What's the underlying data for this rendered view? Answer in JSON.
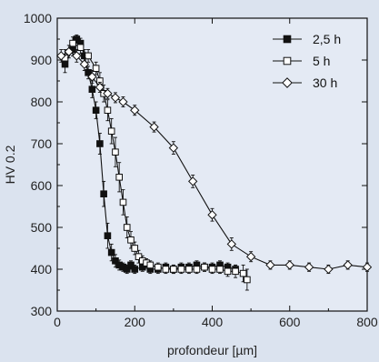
{
  "colors": {
    "background": "#dbe3ef",
    "plot_background": "#e4eaf4",
    "ink": "#111111"
  },
  "chart_data": {
    "type": "line",
    "xlabel": "profondeur [µm]",
    "ylabel": "HV 0.2",
    "xlim": [
      0,
      800
    ],
    "ylim": [
      300,
      1000
    ],
    "xticks": [
      0,
      200,
      400,
      600,
      800
    ],
    "yticks": [
      300,
      400,
      500,
      600,
      700,
      800,
      900,
      1000
    ],
    "grid": false,
    "legend_position": "top-right",
    "series": [
      {
        "name": "2,5 h",
        "marker": "filled-square",
        "x": [
          20,
          40,
          50,
          60,
          70,
          80,
          90,
          100,
          110,
          120,
          130,
          140,
          150,
          160,
          170,
          180,
          190,
          200,
          220,
          240,
          260,
          280,
          300,
          320,
          340,
          360,
          380,
          400,
          420,
          440,
          460
        ],
        "y": [
          890,
          925,
          950,
          940,
          910,
          870,
          830,
          780,
          700,
          580,
          480,
          440,
          420,
          410,
          405,
          400,
          410,
          400,
          405,
          400,
          400,
          405,
          400,
          405,
          405,
          410,
          405,
          405,
          410,
          405,
          400
        ],
        "yerr": [
          20,
          15,
          10,
          12,
          15,
          15,
          20,
          20,
          25,
          30,
          30,
          20,
          15,
          12,
          10,
          10,
          10,
          10,
          10,
          10,
          10,
          10,
          10,
          10,
          10,
          10,
          10,
          10,
          10,
          10,
          10
        ]
      },
      {
        "name": "5 h",
        "marker": "open-square",
        "x": [
          20,
          40,
          60,
          80,
          100,
          110,
          120,
          130,
          140,
          150,
          160,
          170,
          180,
          190,
          200,
          210,
          220,
          230,
          240,
          260,
          280,
          300,
          320,
          340,
          360,
          380,
          400,
          420,
          440,
          460,
          480,
          490
        ],
        "y": [
          905,
          940,
          930,
          910,
          880,
          850,
          820,
          780,
          730,
          680,
          620,
          560,
          500,
          470,
          450,
          430,
          420,
          415,
          410,
          405,
          400,
          400,
          400,
          400,
          400,
          405,
          400,
          400,
          395,
          395,
          390,
          375
        ],
        "yerr": [
          20,
          15,
          15,
          15,
          15,
          20,
          20,
          25,
          30,
          35,
          35,
          30,
          25,
          20,
          15,
          15,
          12,
          10,
          10,
          10,
          10,
          10,
          10,
          10,
          10,
          10,
          10,
          10,
          12,
          15,
          20,
          25
        ]
      },
      {
        "name": "30 h",
        "marker": "open-diamond",
        "x": [
          10,
          30,
          50,
          70,
          90,
          110,
          130,
          150,
          170,
          200,
          250,
          300,
          350,
          400,
          450,
          500,
          550,
          600,
          650,
          700,
          750,
          800
        ],
        "y": [
          910,
          920,
          910,
          890,
          860,
          835,
          820,
          810,
          800,
          780,
          740,
          690,
          610,
          530,
          460,
          430,
          410,
          410,
          405,
          400,
          410,
          405
        ],
        "yerr": [
          15,
          15,
          15,
          15,
          15,
          12,
          12,
          12,
          12,
          12,
          12,
          15,
          15,
          15,
          15,
          12,
          10,
          10,
          10,
          10,
          10,
          10
        ]
      }
    ]
  }
}
